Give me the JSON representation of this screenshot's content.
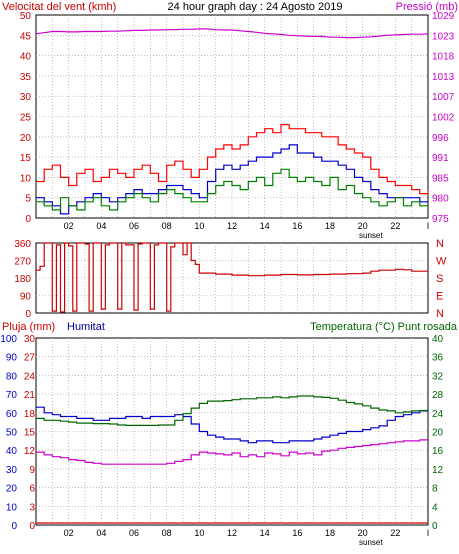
{
  "chart_data": [
    {
      "type": "line",
      "title": "24 hour graph day : 24 Agosto 2019",
      "ylabel_left": "Velocitat del vent (kmh)",
      "ylabel_right": "Pressió (mb)",
      "x_tick_labels": [
        "02",
        "04",
        "06",
        "08",
        "10",
        "12",
        "14",
        "16",
        "18",
        "20",
        "22",
        "l"
      ],
      "x_annotation": "sunset",
      "y_left_ticks": [
        "0",
        "5",
        "10",
        "15",
        "20",
        "25",
        "30",
        "35",
        "40",
        "45",
        "50"
      ],
      "y_right_ticks": [
        "975",
        "980",
        "985",
        "991",
        "996",
        "1002",
        "1007",
        "1013",
        "1018",
        "1023",
        "1029"
      ],
      "y_left_range": [
        0,
        50
      ],
      "y_right_range": [
        975,
        1029
      ],
      "x": [
        0,
        0.5,
        1,
        1.5,
        2,
        2.5,
        3,
        3.5,
        4,
        4.5,
        5,
        5.5,
        6,
        6.5,
        7,
        7.5,
        8,
        8.5,
        9,
        9.5,
        10,
        10.5,
        11,
        11.5,
        12,
        12.5,
        13,
        13.5,
        14,
        14.5,
        15,
        15.5,
        16,
        16.5,
        17,
        17.5,
        18,
        18.5,
        19,
        19.5,
        20,
        20.5,
        21,
        21.5,
        22,
        22.5,
        23,
        23.5,
        24
      ],
      "series": [
        {
          "role": "gust",
          "color": "#ff0000",
          "values": [
            9,
            12,
            13,
            10,
            8,
            11,
            12,
            9,
            10,
            12,
            11,
            10,
            12,
            13,
            11,
            9,
            13,
            14,
            12,
            10,
            12,
            15,
            17,
            18,
            17,
            18,
            20,
            21,
            22,
            21,
            23,
            22,
            22,
            21,
            21,
            20,
            20,
            18,
            17,
            16,
            15,
            12,
            10,
            9,
            8,
            8,
            7,
            6,
            7
          ]
        },
        {
          "role": "average",
          "color": "#0000cc",
          "values": [
            5,
            4,
            3,
            1,
            3,
            4,
            5,
            6,
            5,
            4,
            5,
            6,
            7,
            6,
            6,
            7,
            8,
            8,
            7,
            6,
            5,
            9,
            12,
            13,
            12,
            13,
            14,
            15,
            15,
            16,
            17,
            18,
            16,
            16,
            15,
            14,
            14,
            13,
            12,
            10,
            9,
            7,
            6,
            5,
            5,
            5,
            5,
            4,
            4
          ]
        },
        {
          "role": "wind",
          "color": "#008000",
          "values": [
            4,
            3,
            2,
            5,
            3,
            2,
            4,
            5,
            3,
            2,
            4,
            5,
            6,
            5,
            4,
            6,
            7,
            6,
            5,
            4,
            4,
            6,
            8,
            9,
            8,
            7,
            9,
            10,
            8,
            11,
            12,
            10,
            9,
            10,
            9,
            8,
            10,
            7,
            8,
            6,
            5,
            4,
            3,
            4,
            5,
            3,
            4,
            3,
            3
          ]
        },
        {
          "role": "pressure",
          "color": "#cc00cc",
          "values": [
            1024,
            1024.3,
            1024.6,
            1024.6,
            1024.5,
            1024.5,
            1024.6,
            1024.6,
            1024.6,
            1024.7,
            1024.7,
            1024.8,
            1024.9,
            1024.9,
            1025,
            1025,
            1025.1,
            1025.1,
            1025.2,
            1025.2,
            1025.3,
            1025.3,
            1025.1,
            1025,
            1025,
            1024.8,
            1024.6,
            1024.4,
            1024.1,
            1024,
            1023.8,
            1023.6,
            1023.5,
            1023.4,
            1023.3,
            1023.3,
            1023.1,
            1023.1,
            1023,
            1023,
            1023.1,
            1023.2,
            1023.4,
            1023.6,
            1023.7,
            1023.8,
            1023.9,
            1023.9,
            1024
          ]
        }
      ]
    },
    {
      "type": "line",
      "title": "",
      "y_left_ticks": [
        "360",
        "270",
        "180",
        "90",
        "0"
      ],
      "y_right_labels": [
        "N",
        "W",
        "S",
        "E",
        "N"
      ],
      "y_left_range": [
        0,
        360
      ],
      "x_tick_labels": [
        "02",
        "04",
        "06",
        "08",
        "10",
        "12",
        "14",
        "16",
        "18",
        "20",
        "22",
        "l"
      ],
      "x": [
        0,
        0.25,
        0.5,
        1,
        1.25,
        1.5,
        1.75,
        2,
        2.25,
        2.5,
        3,
        3.25,
        3.5,
        4,
        4.25,
        4.5,
        5,
        5.25,
        5.5,
        6,
        6.25,
        6.5,
        7,
        7.25,
        7.5,
        8,
        8.25,
        8.5,
        9,
        9.25,
        9.5,
        9.75,
        10,
        11,
        12,
        13,
        14,
        15,
        16,
        17,
        18,
        19,
        20,
        20.5,
        21,
        21.5,
        22,
        22.5,
        23,
        24
      ],
      "series": [
        {
          "role": "direction",
          "color": "#cc0000",
          "values": [
            220,
            240,
            360,
            10,
            350,
            5,
            360,
            345,
            10,
            360,
            355,
            10,
            360,
            20,
            350,
            360,
            20,
            360,
            350,
            15,
            355,
            360,
            20,
            350,
            360,
            10,
            340,
            360,
            300,
            360,
            270,
            250,
            205,
            200,
            195,
            192,
            195,
            198,
            196,
            198,
            200,
            202,
            205,
            215,
            220,
            220,
            225,
            222,
            215,
            210
          ]
        }
      ]
    },
    {
      "type": "line",
      "title": "",
      "ylabel_left_1": "Pluja (mm)",
      "ylabel_left_2": "Humitat",
      "ylabel_right": "Temperatura (°C) Punt rosada",
      "y_left_ticks_pluja": [
        "30",
        "27",
        "24",
        "21",
        "18",
        "15",
        "12",
        "9",
        "6",
        "3",
        "0"
      ],
      "y_left_ticks_humitat": [
        "100",
        "90",
        "80",
        "70",
        "60",
        "50",
        "40",
        "30",
        "20",
        "10",
        "0"
      ],
      "y_right_ticks": [
        "40",
        "36",
        "32",
        "28",
        "24",
        "20",
        "16",
        "12",
        "8",
        "4",
        "0"
      ],
      "y_humidity_range": [
        0,
        100
      ],
      "y_temperature_range": [
        0,
        40
      ],
      "x_tick_labels": [
        "02",
        "04",
        "06",
        "08",
        "10",
        "12",
        "14",
        "16",
        "18",
        "20",
        "22",
        "l"
      ],
      "x_annotation": "sunset",
      "x": [
        0,
        0.5,
        1,
        1.5,
        2,
        2.5,
        3,
        3.5,
        4,
        4.5,
        5,
        5.5,
        6,
        6.5,
        7,
        7.5,
        8,
        8.5,
        9,
        9.5,
        10,
        10.5,
        11,
        11.5,
        12,
        12.5,
        13,
        13.5,
        14,
        14.5,
        15,
        15.5,
        16,
        16.5,
        17,
        17.5,
        18,
        18.5,
        19,
        19.5,
        20,
        20.5,
        21,
        21.5,
        22,
        22.5,
        23,
        23.5,
        24
      ],
      "series": [
        {
          "role": "humidity",
          "color": "#0000cc",
          "values": [
            63,
            60,
            59,
            58,
            58,
            57,
            57,
            56,
            56,
            57,
            57,
            58,
            58,
            57,
            58,
            58,
            58,
            59,
            58,
            54,
            50,
            48,
            47,
            46,
            46,
            45,
            44,
            45,
            45,
            44,
            44,
            45,
            45,
            45,
            46,
            47,
            48,
            49,
            50,
            50,
            51,
            52,
            53,
            56,
            58,
            59,
            60,
            61,
            62
          ]
        },
        {
          "role": "temperature",
          "color": "#006600",
          "values": [
            22.8,
            22.4,
            22.4,
            22.2,
            22.0,
            21.8,
            21.8,
            21.7,
            21.7,
            21.6,
            21.4,
            21.3,
            21.3,
            21.3,
            21.3,
            21.4,
            21.4,
            22.4,
            23.8,
            25.0,
            26.0,
            26.5,
            26.5,
            26.6,
            26.8,
            27.0,
            27.0,
            27.2,
            27.2,
            27.4,
            27.2,
            27.4,
            27.6,
            27.6,
            27.4,
            27.3,
            27.1,
            26.7,
            26.2,
            25.9,
            25.5,
            25.0,
            24.6,
            24.4,
            24.0,
            24.2,
            24.4,
            24.5,
            24.6
          ]
        },
        {
          "role": "dew_point",
          "color": "#cc00cc",
          "values": [
            15.6,
            15.0,
            14.6,
            14.4,
            14.0,
            13.8,
            13.4,
            13.2,
            13.0,
            13.0,
            13.0,
            13.0,
            13.0,
            13.0,
            13.0,
            13.0,
            13.2,
            13.6,
            14.0,
            15.0,
            15.6,
            15.4,
            15.2,
            15.0,
            15.4,
            14.6,
            15.0,
            14.6,
            15.4,
            15.2,
            14.8,
            15.6,
            15.2,
            15.4,
            15.0,
            15.8,
            16.0,
            16.4,
            16.6,
            16.8,
            17.0,
            17.2,
            17.4,
            17.6,
            17.8,
            18.0,
            18.0,
            18.2,
            18.2
          ]
        },
        {
          "role": "rain",
          "color": "#cc0000",
          "values": [
            0,
            0,
            0,
            0,
            0,
            0,
            0,
            0,
            0,
            0,
            0,
            0,
            0,
            0,
            0,
            0,
            0,
            0,
            0,
            0,
            0,
            0,
            0,
            0,
            0,
            0,
            0,
            0,
            0,
            0,
            0,
            0,
            0,
            0,
            0,
            0,
            0,
            0,
            0,
            0,
            0,
            0,
            0,
            0,
            0,
            0,
            0,
            0,
            0
          ]
        }
      ]
    }
  ]
}
